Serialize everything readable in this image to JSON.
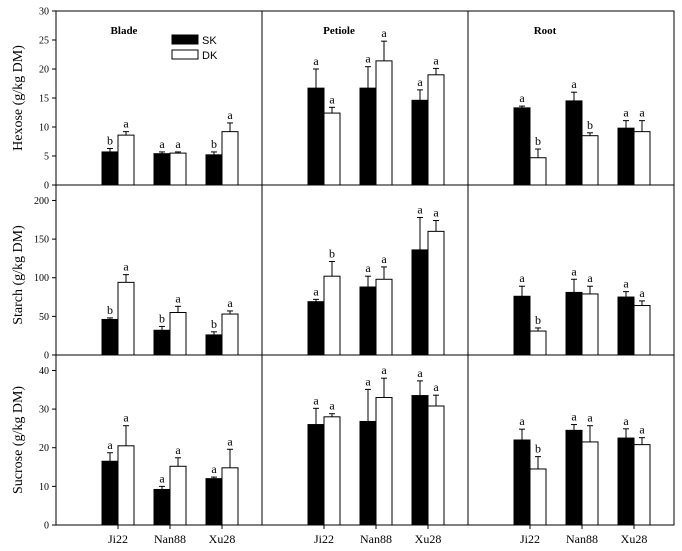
{
  "colors": {
    "SK": "#000000",
    "DK": "#ffffff",
    "axis": "#000000"
  },
  "legend": [
    "SK",
    "DK"
  ],
  "categories": [
    "Ji22",
    "Nan88",
    "Xu28"
  ],
  "column_titles": [
    "Blade",
    "Petiole",
    "Root"
  ],
  "row_ylabels": [
    "Hexose (g/kg DM)",
    "Starch (g/kg DM)",
    "Sucrose (g/kg DM)"
  ],
  "chart_data": [
    {
      "type": "bar",
      "title": "Blade",
      "ylabel": "Hexose (g/kg DM)",
      "ylim": [
        0,
        30
      ],
      "yticks": [
        0,
        5,
        10,
        15,
        20,
        25,
        30
      ],
      "categories": [
        "Ji22",
        "Nan88",
        "Xu28"
      ],
      "series": [
        {
          "name": "SK",
          "values": [
            5.7,
            5.4,
            5.2
          ],
          "errors": [
            0.6,
            0.3,
            0.5
          ],
          "letters": [
            "b",
            "a",
            "b"
          ]
        },
        {
          "name": "DK",
          "values": [
            8.6,
            5.5,
            9.2
          ],
          "errors": [
            0.6,
            0.2,
            1.5
          ],
          "letters": [
            "a",
            "a",
            "a"
          ]
        }
      ]
    },
    {
      "type": "bar",
      "title": "Petiole",
      "ylabel": "Hexose (g/kg DM)",
      "ylim": [
        0,
        30
      ],
      "yticks": [
        0,
        5,
        10,
        15,
        20,
        25,
        30
      ],
      "categories": [
        "Ji22",
        "Nan88",
        "Xu28"
      ],
      "series": [
        {
          "name": "SK",
          "values": [
            16.7,
            16.7,
            14.6
          ],
          "errors": [
            3.3,
            3.7,
            1.8
          ],
          "letters": [
            "a",
            "a",
            "a"
          ]
        },
        {
          "name": "DK",
          "values": [
            12.4,
            21.4,
            19.0
          ],
          "errors": [
            1.0,
            3.4,
            1.1
          ],
          "letters": [
            "a",
            "a",
            "a"
          ]
        }
      ]
    },
    {
      "type": "bar",
      "title": "Root",
      "ylabel": "Hexose (g/kg DM)",
      "ylim": [
        0,
        30
      ],
      "yticks": [
        0,
        5,
        10,
        15,
        20,
        25,
        30
      ],
      "categories": [
        "Ji22",
        "Nan88",
        "Xu28"
      ],
      "series": [
        {
          "name": "SK",
          "values": [
            13.3,
            14.5,
            9.8
          ],
          "errors": [
            0.3,
            1.5,
            1.3
          ],
          "letters": [
            "a",
            "a",
            "a"
          ]
        },
        {
          "name": "DK",
          "values": [
            4.7,
            8.5,
            9.2
          ],
          "errors": [
            1.5,
            0.5,
            1.9
          ],
          "letters": [
            "b",
            "b",
            "a"
          ]
        }
      ]
    },
    {
      "type": "bar",
      "title": "Blade",
      "ylabel": "Starch (g/kg DM)",
      "ylim": [
        0,
        220
      ],
      "yticks": [
        0,
        50,
        100,
        150,
        200
      ],
      "categories": [
        "Ji22",
        "Nan88",
        "Xu28"
      ],
      "series": [
        {
          "name": "SK",
          "values": [
            46,
            32,
            26
          ],
          "errors": [
            2,
            5,
            4
          ],
          "letters": [
            "b",
            "b",
            "b"
          ]
        },
        {
          "name": "DK",
          "values": [
            94,
            55,
            53
          ],
          "errors": [
            10,
            8,
            4
          ],
          "letters": [
            "a",
            "a",
            "a"
          ]
        }
      ]
    },
    {
      "type": "bar",
      "title": "Petiole",
      "ylabel": "Starch (g/kg DM)",
      "ylim": [
        0,
        220
      ],
      "yticks": [
        0,
        50,
        100,
        150,
        200
      ],
      "categories": [
        "Ji22",
        "Nan88",
        "Xu28"
      ],
      "series": [
        {
          "name": "SK",
          "values": [
            69,
            88,
            136
          ],
          "errors": [
            3,
            14,
            42
          ],
          "letters": [
            "a",
            "a",
            "a"
          ]
        },
        {
          "name": "DK",
          "values": [
            102,
            98,
            160
          ],
          "errors": [
            19,
            16,
            14
          ],
          "letters": [
            "b",
            "a",
            "a"
          ]
        }
      ]
    },
    {
      "type": "bar",
      "title": "Root",
      "ylabel": "Starch (g/kg DM)",
      "ylim": [
        0,
        220
      ],
      "yticks": [
        0,
        50,
        100,
        150,
        200
      ],
      "categories": [
        "Ji22",
        "Nan88",
        "Xu28"
      ],
      "series": [
        {
          "name": "SK",
          "values": [
            76,
            81,
            75
          ],
          "errors": [
            13,
            17,
            7
          ],
          "letters": [
            "a",
            "a",
            "a"
          ]
        },
        {
          "name": "DK",
          "values": [
            31,
            79,
            64
          ],
          "errors": [
            4,
            10,
            6
          ],
          "letters": [
            "b",
            "a",
            "a"
          ]
        }
      ]
    },
    {
      "type": "bar",
      "title": "Blade",
      "ylabel": "Sucrose (g/kg DM)",
      "ylim": [
        0,
        44
      ],
      "yticks": [
        0,
        10,
        20,
        30,
        40
      ],
      "categories": [
        "Ji22",
        "Nan88",
        "Xu28"
      ],
      "series": [
        {
          "name": "SK",
          "values": [
            16.5,
            9.2,
            12.0
          ],
          "errors": [
            2.2,
            0.8,
            0.4
          ],
          "letters": [
            "a",
            "a",
            "a"
          ]
        },
        {
          "name": "DK",
          "values": [
            20.5,
            15.2,
            14.8
          ],
          "errors": [
            5.2,
            2.2,
            4.8
          ],
          "letters": [
            "a",
            "a",
            "a"
          ]
        }
      ]
    },
    {
      "type": "bar",
      "title": "Petiole",
      "ylabel": "Sucrose (g/kg DM)",
      "ylim": [
        0,
        44
      ],
      "yticks": [
        0,
        10,
        20,
        30,
        40
      ],
      "categories": [
        "Ji22",
        "Nan88",
        "Xu28"
      ],
      "series": [
        {
          "name": "SK",
          "values": [
            26.0,
            26.8,
            33.5
          ],
          "errors": [
            4.2,
            8.3,
            3.8
          ],
          "letters": [
            "a",
            "a",
            "a"
          ]
        },
        {
          "name": "DK",
          "values": [
            28.0,
            33.0,
            30.8
          ],
          "errors": [
            0.8,
            5.0,
            2.8
          ],
          "letters": [
            "a",
            "a",
            "a"
          ]
        }
      ]
    },
    {
      "type": "bar",
      "title": "Root",
      "ylabel": "Sucrose (g/kg DM)",
      "ylim": [
        0,
        44
      ],
      "yticks": [
        0,
        10,
        20,
        30,
        40
      ],
      "categories": [
        "Ji22",
        "Nan88",
        "Xu28"
      ],
      "series": [
        {
          "name": "SK",
          "values": [
            22.0,
            24.5,
            22.5
          ],
          "errors": [
            2.8,
            1.5,
            2.4
          ],
          "letters": [
            "a",
            "a",
            "a"
          ]
        },
        {
          "name": "DK",
          "values": [
            14.5,
            21.5,
            20.8
          ],
          "errors": [
            3.2,
            4.2,
            1.8
          ],
          "letters": [
            "b",
            "a",
            "a"
          ]
        }
      ]
    }
  ]
}
